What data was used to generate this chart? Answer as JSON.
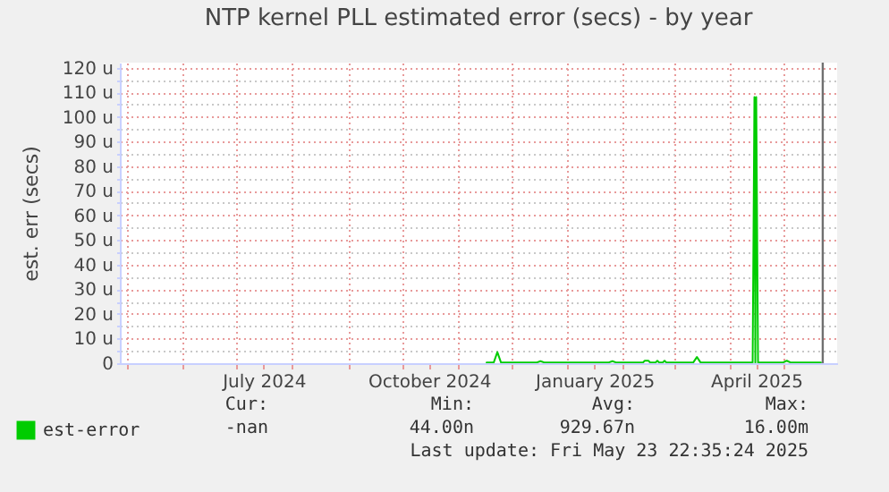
{
  "chart_data": {
    "type": "line",
    "title": "NTP kernel PLL estimated error (secs) - by year",
    "ylabel": "est. err (secs)",
    "x": [
      "2024-11-17",
      "2024-11-21",
      "2024-11-23",
      "2024-11-25",
      "2024-12-15",
      "2024-12-17",
      "2024-12-19",
      "2025-01-24",
      "2025-01-26",
      "2025-01-28",
      "2025-02-12",
      "2025-02-13",
      "2025-02-15",
      "2025-02-16",
      "2025-02-19",
      "2025-02-20",
      "2025-02-21",
      "2025-02-23",
      "2025-02-24",
      "2025-02-25",
      "2025-03-12",
      "2025-03-14",
      "2025-03-16",
      "2025-04-14",
      "2025-04-15",
      "2025-04-15T12:00",
      "2025-04-16",
      "2025-04-17",
      "2025-05-01",
      "2025-05-03",
      "2025-05-05",
      "2025-05-22"
    ],
    "series": [
      {
        "name": "est-error",
        "color": "#00cc00",
        "values": [
          0.3,
          0.3,
          4.5,
          0.3,
          0.3,
          0.8,
          0.3,
          0.3,
          0.8,
          0.3,
          0.3,
          1,
          1,
          0.3,
          0.3,
          1,
          0.3,
          0.3,
          1,
          0.3,
          0.3,
          2.5,
          0.3,
          0.3,
          108,
          0.3,
          108,
          0.3,
          0.3,
          1,
          0.3,
          0.3
        ]
      }
    ],
    "xlim": [
      "2024-04-27",
      "2025-05-31"
    ],
    "xticks": [
      {
        "value": "2024-05-01",
        "label": null
      },
      {
        "value": "2024-06-01",
        "label": null
      },
      {
        "value": "2024-07-01",
        "label": null
      },
      {
        "value": "2024-07-16",
        "label": "July 2024"
      },
      {
        "value": "2024-08-01",
        "label": null
      },
      {
        "value": "2024-09-01",
        "label": null
      },
      {
        "value": "2024-10-01",
        "label": null
      },
      {
        "value": "2024-10-16",
        "label": "October 2024"
      },
      {
        "value": "2024-11-01",
        "label": null
      },
      {
        "value": "2024-12-01",
        "label": null
      },
      {
        "value": "2025-01-01",
        "label": null
      },
      {
        "value": "2025-01-16",
        "label": "January 2025"
      },
      {
        "value": "2025-02-01",
        "label": null
      },
      {
        "value": "2025-03-01",
        "label": null
      },
      {
        "value": "2025-04-01",
        "label": null
      },
      {
        "value": "2025-04-16",
        "label": "April 2025"
      },
      {
        "value": "2025-05-01",
        "label": null
      }
    ],
    "ylim": [
      0,
      122
    ],
    "yticks": [
      {
        "value": 0,
        "label": "0"
      },
      {
        "value": 5,
        "label": null
      },
      {
        "value": 10,
        "label": "10 u"
      },
      {
        "value": 15,
        "label": null
      },
      {
        "value": 20,
        "label": "20 u"
      },
      {
        "value": 25,
        "label": null
      },
      {
        "value": 30,
        "label": "30 u"
      },
      {
        "value": 35,
        "label": null
      },
      {
        "value": 40,
        "label": "40 u"
      },
      {
        "value": 45,
        "label": null
      },
      {
        "value": 50,
        "label": "50 u"
      },
      {
        "value": 55,
        "label": null
      },
      {
        "value": 60,
        "label": "60 u"
      },
      {
        "value": 65,
        "label": null
      },
      {
        "value": 70,
        "label": "70 u"
      },
      {
        "value": 75,
        "label": null
      },
      {
        "value": 80,
        "label": "80 u"
      },
      {
        "value": 85,
        "label": null
      },
      {
        "value": 90,
        "label": "90 u"
      },
      {
        "value": 95,
        "label": null
      },
      {
        "value": 100,
        "label": "100 u"
      },
      {
        "value": 105,
        "label": null
      },
      {
        "value": 110,
        "label": "110 u"
      },
      {
        "value": 115,
        "label": null
      },
      {
        "value": 120,
        "label": "120 u"
      }
    ],
    "ref_lines": [
      {
        "axis": "x",
        "value": "2025-05-23",
        "color": "#707070"
      }
    ],
    "grid": true,
    "legend": "bottom left",
    "annotations": [
      "Cur:",
      "Min:",
      "Avg:",
      "Max:",
      "-nan",
      "44.00n",
      "929.67n",
      "16.00m",
      "Last update: Fri May 23 22:35:24 2025"
    ]
  }
}
